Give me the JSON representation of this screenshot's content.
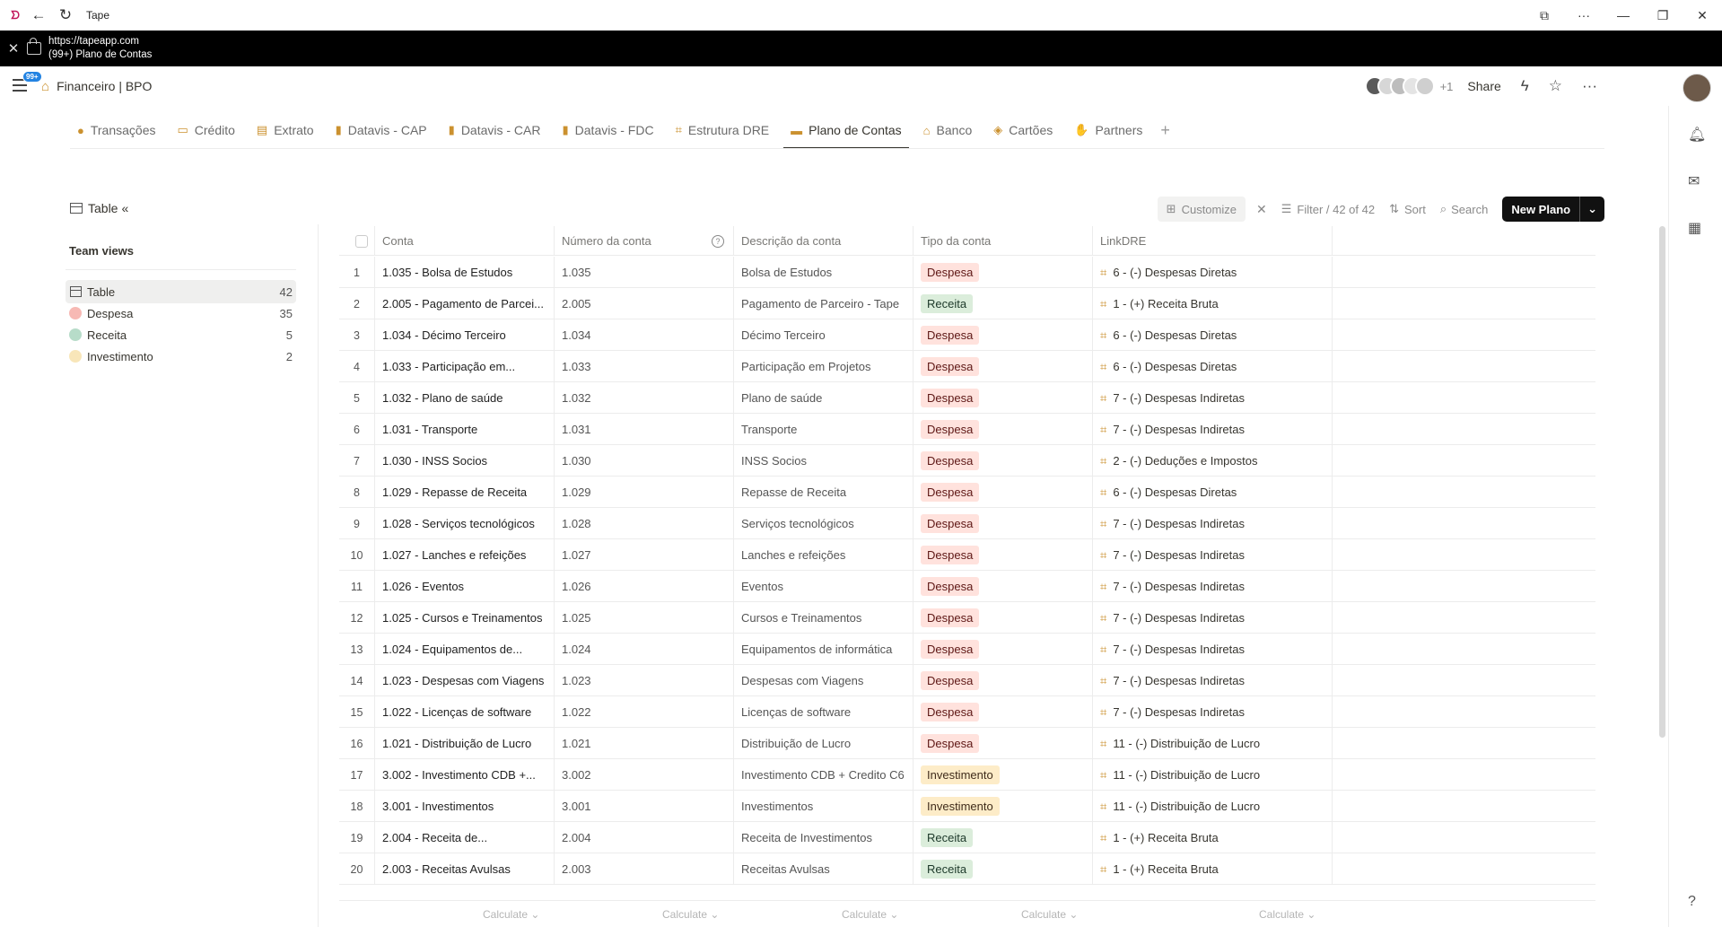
{
  "window": {
    "title": "Tape",
    "url": "https://tapeapp.com",
    "page_title": "(99+) Plano de Contas"
  },
  "topbar": {
    "badge": "99+",
    "breadcrumb": "Financeiro | BPO",
    "extra_members": "+1",
    "share_label": "Share"
  },
  "tabs": [
    {
      "label": "Transações",
      "icon": "coin-icon",
      "glyph": "●"
    },
    {
      "label": "Crédito",
      "icon": "card-icon",
      "glyph": "▭"
    },
    {
      "label": "Extrato",
      "icon": "document-icon",
      "glyph": "▤"
    },
    {
      "label": "Datavis - CAP",
      "icon": "bar-chart-icon",
      "glyph": "▮"
    },
    {
      "label": "Datavis - CAR",
      "icon": "bar-chart-icon",
      "glyph": "▮"
    },
    {
      "label": "Datavis - FDC",
      "icon": "bar-chart-icon",
      "glyph": "▮"
    },
    {
      "label": "Estrutura DRE",
      "icon": "structure-icon",
      "glyph": "⌗"
    },
    {
      "label": "Plano de Contas",
      "icon": "wallet-icon",
      "glyph": "▬",
      "active": true
    },
    {
      "label": "Banco",
      "icon": "bank-icon",
      "glyph": "⌂"
    },
    {
      "label": "Cartões",
      "icon": "cards-icon",
      "glyph": "◈"
    },
    {
      "label": "Partners",
      "icon": "handshake-icon",
      "glyph": "✋"
    }
  ],
  "toolbar": {
    "view_label": "Table",
    "collapse_glyph": "«",
    "customize_label": "Customize",
    "filter_label": "Filter / 42 of 42",
    "sort_label": "Sort",
    "search_label": "Search",
    "new_label": "New Plano"
  },
  "team_views": {
    "title": "Team views",
    "items": [
      {
        "label": "Table",
        "count": "42",
        "selected": true,
        "type": "table"
      },
      {
        "label": "Despesa",
        "count": "35",
        "color": "#f7b9b4"
      },
      {
        "label": "Receita",
        "count": "5",
        "color": "#b7dcc9"
      },
      {
        "label": "Investimento",
        "count": "2",
        "color": "#f8e6b9"
      }
    ]
  },
  "table": {
    "columns": [
      "Conta",
      "Número da conta",
      "Descrição da conta",
      "Tipo da conta",
      "LinkDRE"
    ],
    "rows": [
      {
        "n": "1",
        "conta": "1.035 - Bolsa de Estudos",
        "numero": "1.035",
        "descricao": "Bolsa de Estudos",
        "tipo": "Despesa",
        "dre": "6 - (-) Despesas Diretas"
      },
      {
        "n": "2",
        "conta": "2.005 - Pagamento de Parcei...",
        "numero": "2.005",
        "descricao": "Pagamento de Parceiro - Tape",
        "tipo": "Receita",
        "dre": "1 - (+) Receita Bruta"
      },
      {
        "n": "3",
        "conta": "1.034 - Décimo Terceiro",
        "numero": "1.034",
        "descricao": "Décimo Terceiro",
        "tipo": "Despesa",
        "dre": "6 - (-) Despesas Diretas"
      },
      {
        "n": "4",
        "conta": "1.033 - Participação em...",
        "numero": "1.033",
        "descricao": "Participação em Projetos",
        "tipo": "Despesa",
        "dre": "6 - (-) Despesas Diretas"
      },
      {
        "n": "5",
        "conta": "1.032 - Plano de saúde",
        "numero": "1.032",
        "descricao": "Plano de saúde",
        "tipo": "Despesa",
        "dre": "7 - (-) Despesas Indiretas"
      },
      {
        "n": "6",
        "conta": "1.031 - Transporte",
        "numero": "1.031",
        "descricao": "Transporte",
        "tipo": "Despesa",
        "dre": "7 - (-) Despesas Indiretas"
      },
      {
        "n": "7",
        "conta": "1.030 - INSS Socios",
        "numero": "1.030",
        "descricao": "INSS Socios",
        "tipo": "Despesa",
        "dre": "2 - (-) Deduções e Impostos"
      },
      {
        "n": "8",
        "conta": "1.029 - Repasse de Receita",
        "numero": "1.029",
        "descricao": "Repasse de Receita",
        "tipo": "Despesa",
        "dre": "6 - (-) Despesas Diretas"
      },
      {
        "n": "9",
        "conta": "1.028 - Serviços tecnológicos",
        "numero": "1.028",
        "descricao": "Serviços tecnológicos",
        "tipo": "Despesa",
        "dre": "7 - (-) Despesas Indiretas"
      },
      {
        "n": "10",
        "conta": "1.027 - Lanches e refeições",
        "numero": "1.027",
        "descricao": "Lanches e refeições",
        "tipo": "Despesa",
        "dre": "7 - (-) Despesas Indiretas"
      },
      {
        "n": "11",
        "conta": "1.026 - Eventos",
        "numero": "1.026",
        "descricao": "Eventos",
        "tipo": "Despesa",
        "dre": "7 - (-) Despesas Indiretas"
      },
      {
        "n": "12",
        "conta": "1.025 - Cursos e Treinamentos",
        "numero": "1.025",
        "descricao": "Cursos e Treinamentos",
        "tipo": "Despesa",
        "dre": "7 - (-) Despesas Indiretas"
      },
      {
        "n": "13",
        "conta": "1.024 - Equipamentos de...",
        "numero": "1.024",
        "descricao": "Equipamentos de informática",
        "tipo": "Despesa",
        "dre": "7 - (-) Despesas Indiretas"
      },
      {
        "n": "14",
        "conta": "1.023 - Despesas com Viagens",
        "numero": "1.023",
        "descricao": "Despesas com Viagens",
        "tipo": "Despesa",
        "dre": "7 - (-) Despesas Indiretas"
      },
      {
        "n": "15",
        "conta": "1.022 - Licenças de software",
        "numero": "1.022",
        "descricao": "Licenças de software",
        "tipo": "Despesa",
        "dre": "7 - (-) Despesas Indiretas"
      },
      {
        "n": "16",
        "conta": "1.021 - Distribuição de Lucro",
        "numero": "1.021",
        "descricao": "Distribuição de Lucro",
        "tipo": "Despesa",
        "dre": "11 - (-) Distribuição de Lucro"
      },
      {
        "n": "17",
        "conta": "3.002 - Investimento CDB +...",
        "numero": "3.002",
        "descricao": "Investimento CDB + Credito C6",
        "tipo": "Investimento",
        "dre": "11 - (-) Distribuição de Lucro"
      },
      {
        "n": "18",
        "conta": "3.001 - Investimentos",
        "numero": "3.001",
        "descricao": "Investimentos",
        "tipo": "Investimento",
        "dre": "11 - (-) Distribuição de Lucro"
      },
      {
        "n": "19",
        "conta": "2.004 - Receita de...",
        "numero": "2.004",
        "descricao": "Receita de Investimentos",
        "tipo": "Receita",
        "dre": "1 - (+) Receita Bruta"
      },
      {
        "n": "20",
        "conta": "2.003 - Receitas Avulsas",
        "numero": "2.003",
        "descricao": "Receitas Avulsas",
        "tipo": "Receita",
        "dre": "1 - (+) Receita Bruta"
      }
    ],
    "calculate_label": "Calculate"
  },
  "colors": {
    "accent_icon": "#cb912f",
    "despesa_bg": "#ffe2dd",
    "receita_bg": "#dbeddb",
    "investimento_bg": "#fdecc8"
  }
}
